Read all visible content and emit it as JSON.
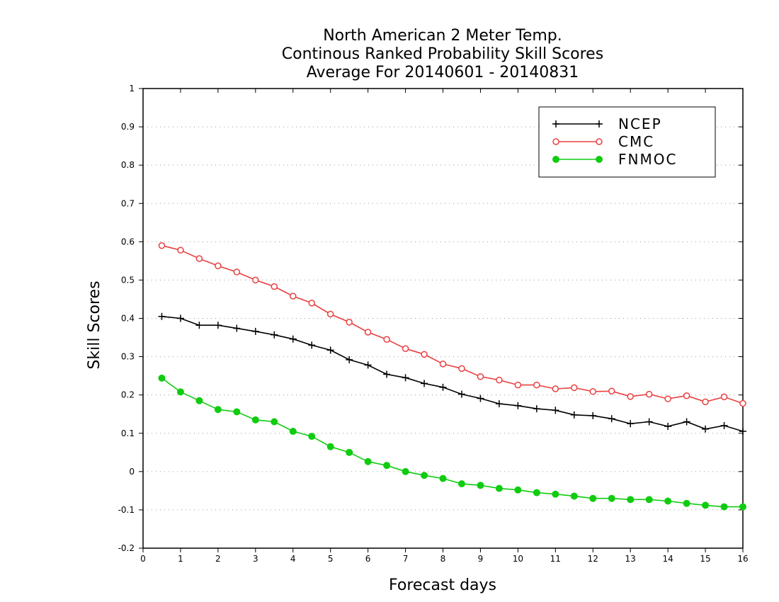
{
  "chart_data": {
    "type": "line",
    "title_lines": [
      "North American 2 Meter Temp.",
      "Continous Ranked Probability Skill Scores",
      "Average For 20140601 - 20140831"
    ],
    "xlabel": "Forecast days",
    "ylabel": "Skill Scores",
    "xlim": [
      0,
      16
    ],
    "ylim": [
      -0.2,
      1
    ],
    "x_ticks": [
      "0",
      "1",
      "2",
      "3",
      "4",
      "5",
      "6",
      "7",
      "8",
      "9",
      "10",
      "11",
      "12",
      "13",
      "14",
      "15",
      "16"
    ],
    "y_ticks": [
      "-0.2",
      "-0.1",
      "0",
      "0.1",
      "0.2",
      "0.3",
      "0.4",
      "0.5",
      "0.6",
      "0.7",
      "0.8",
      "0.9",
      "1"
    ],
    "grid": "horizontal-dotted",
    "legend_position": "top-right",
    "x": [
      0.5,
      1,
      1.5,
      2,
      2.5,
      3,
      3.5,
      4,
      4.5,
      5,
      5.5,
      6,
      6.5,
      7,
      7.5,
      8,
      8.5,
      9,
      9.5,
      10,
      10.5,
      11,
      11.5,
      12,
      12.5,
      13,
      13.5,
      14,
      14.5,
      15,
      15.5,
      16
    ],
    "series": [
      {
        "name": "NCEP",
        "color": "#000000",
        "marker": "plus",
        "values": [
          0.405,
          0.4,
          0.382,
          0.382,
          0.374,
          0.366,
          0.357,
          0.346,
          0.33,
          0.317,
          0.292,
          0.278,
          0.254,
          0.245,
          0.23,
          0.22,
          0.202,
          0.191,
          0.177,
          0.172,
          0.164,
          0.16,
          0.148,
          0.146,
          0.138,
          0.125,
          0.13,
          0.118,
          0.13,
          0.111,
          0.12,
          0.105
        ]
      },
      {
        "name": "CMC",
        "color": "#e84040",
        "marker": "open-circle",
        "values": [
          0.59,
          0.578,
          0.556,
          0.537,
          0.521,
          0.5,
          0.483,
          0.458,
          0.44,
          0.411,
          0.39,
          0.364,
          0.345,
          0.321,
          0.306,
          0.281,
          0.269,
          0.248,
          0.239,
          0.226,
          0.226,
          0.216,
          0.219,
          0.209,
          0.21,
          0.196,
          0.202,
          0.19,
          0.198,
          0.182,
          0.195,
          0.178
        ]
      },
      {
        "name": "FNMOC",
        "color": "#10cc10",
        "marker": "filled-circle",
        "values": [
          0.244,
          0.208,
          0.185,
          0.162,
          0.156,
          0.135,
          0.13,
          0.105,
          0.092,
          0.065,
          0.05,
          0.026,
          0.016,
          0.0,
          -0.01,
          -0.018,
          -0.032,
          -0.036,
          -0.044,
          -0.048,
          -0.055,
          -0.059,
          -0.064,
          -0.07,
          -0.07,
          -0.073,
          -0.073,
          -0.077,
          -0.083,
          -0.088,
          -0.092,
          -0.092
        ]
      }
    ]
  }
}
